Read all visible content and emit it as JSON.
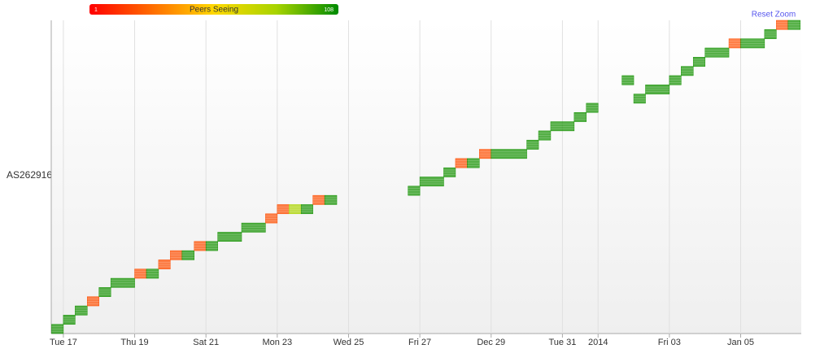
{
  "chart_data": {
    "type": "timeline",
    "colorscale": {
      "title": "Peers Seeing",
      "min": 1,
      "max": 108
    },
    "reset_label": "Reset Zoom",
    "ylabel": "AS262916",
    "xlim": [
      -0.34,
      20.7
    ],
    "xticks": [
      {
        "value": 0,
        "label": "Tue 17"
      },
      {
        "value": 2,
        "label": "Thu 19"
      },
      {
        "value": 4,
        "label": "Sat 21"
      },
      {
        "value": 6,
        "label": "Mon 23"
      },
      {
        "value": 8,
        "label": "Wed 25"
      },
      {
        "value": 10,
        "label": "Fri 27"
      },
      {
        "value": 12,
        "label": "Dec 29"
      },
      {
        "value": 14,
        "label": "Tue 31"
      },
      {
        "value": 15,
        "label": "2014"
      },
      {
        "value": 17,
        "label": "Fri 03"
      },
      {
        "value": 19,
        "label": "Jan 05"
      }
    ],
    "ylim": [
      0,
      34
    ],
    "grid": true,
    "blocks": {
      "start": [
        -0.33,
        0,
        0.33,
        0.67,
        1,
        1.33,
        2,
        2.33,
        2.67,
        3,
        3.33,
        3.67,
        4,
        4.33,
        5,
        5.67,
        6,
        6.33,
        6.67,
        7,
        7.33,
        9.67,
        10,
        10.67,
        11,
        11.33,
        11.67,
        12,
        13,
        13.33,
        13.67,
        14.33,
        14.67,
        15.67,
        16,
        16.33,
        17,
        17.33,
        17.67,
        18,
        18.67,
        19,
        19.67,
        20,
        20.33
      ],
      "end": [
        0,
        0.33,
        0.67,
        1,
        1.33,
        2,
        2.33,
        2.67,
        3,
        3.33,
        3.67,
        4,
        4.33,
        5,
        5.67,
        6,
        6.33,
        6.67,
        7,
        7.33,
        7.67,
        10,
        10.67,
        11,
        11.33,
        11.67,
        12,
        13,
        13.33,
        13.67,
        14.33,
        14.67,
        15,
        16,
        16.33,
        17,
        17.33,
        17.67,
        18,
        18.67,
        19,
        19.67,
        20,
        20.33,
        20.67
      ],
      "row": [
        0,
        1,
        2,
        3,
        4,
        5,
        6,
        6,
        7,
        8,
        8,
        9,
        9,
        10,
        11,
        12,
        13,
        13,
        13,
        14,
        14,
        15,
        16,
        17,
        18,
        18,
        19,
        19,
        20,
        21,
        22,
        23,
        24,
        27,
        25,
        26,
        27,
        28,
        29,
        30,
        31,
        31,
        32,
        33,
        33
      ],
      "peers": [
        105,
        105,
        105,
        20,
        105,
        105,
        20,
        105,
        20,
        20,
        105,
        20,
        105,
        105,
        105,
        20,
        20,
        80,
        105,
        20,
        105,
        105,
        105,
        105,
        20,
        105,
        20,
        105,
        105,
        105,
        105,
        105,
        105,
        105,
        105,
        105,
        105,
        105,
        105,
        105,
        20,
        105,
        105,
        20,
        105
      ]
    }
  }
}
